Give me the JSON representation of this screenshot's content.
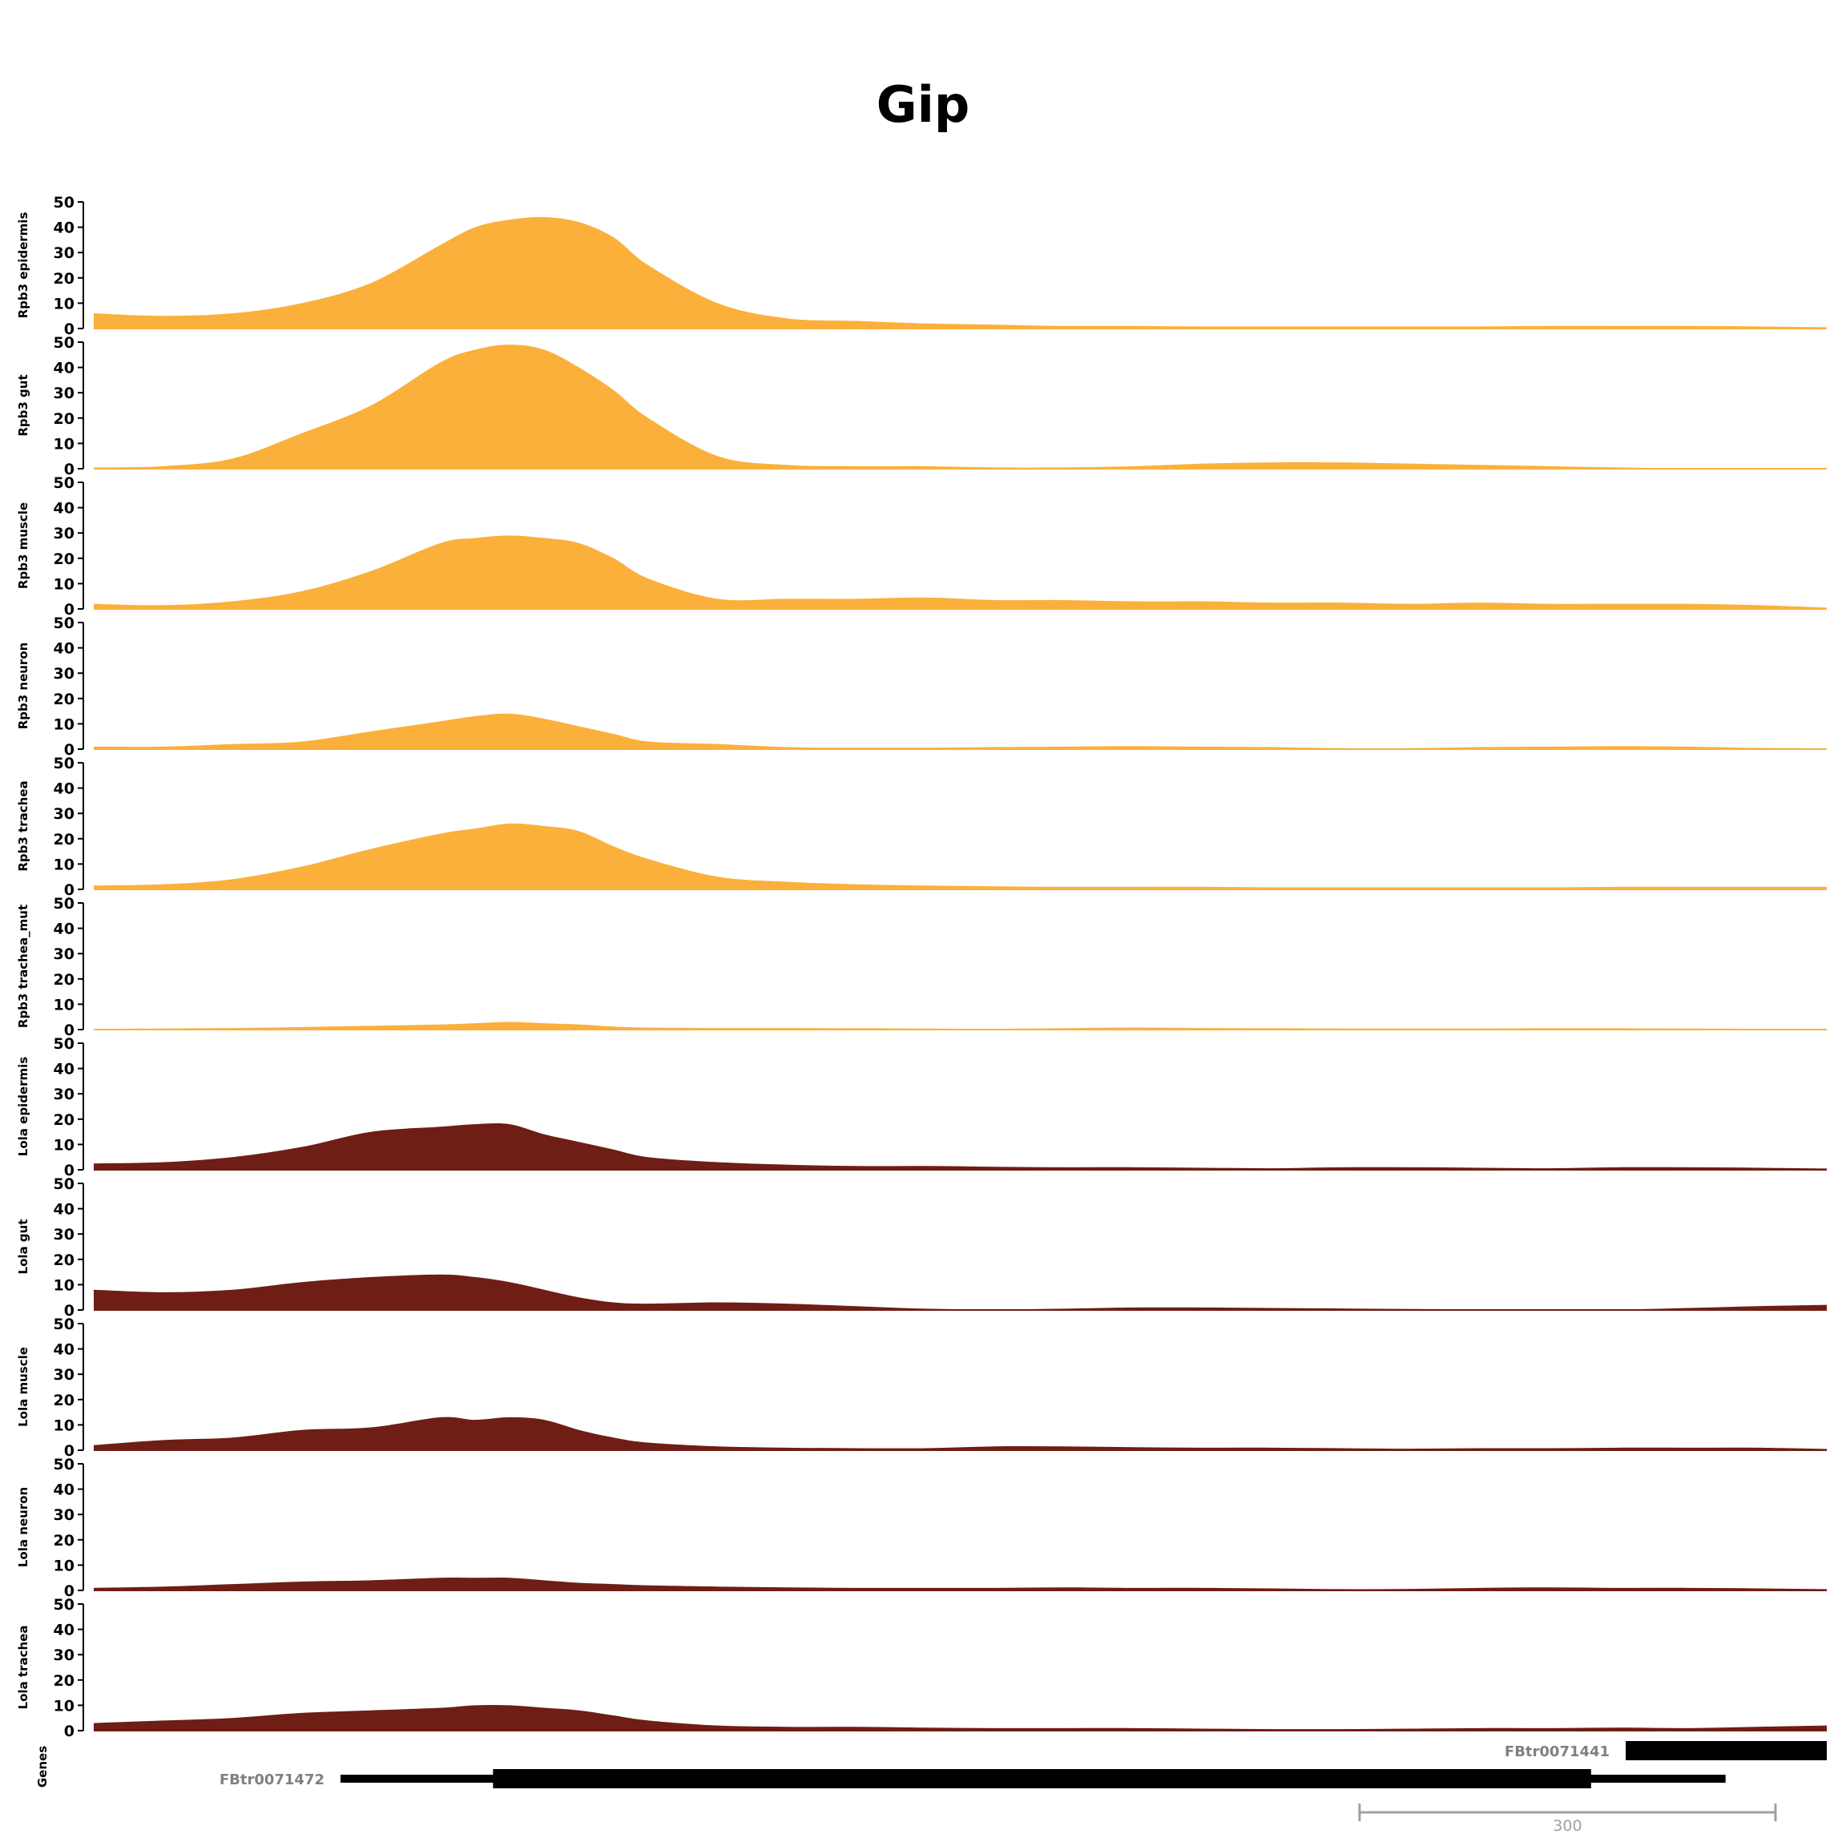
{
  "title": "Gip",
  "colors": {
    "rpb3": "#FBB03B",
    "lola": "#6E1E14",
    "gene": "#000000",
    "gene_label": "#808080",
    "scale": "#A0A0A0",
    "axis": "#000000"
  },
  "chart_data": {
    "type": "area",
    "title": "Gip",
    "ylim": [
      0,
      50
    ],
    "yticks": [
      0,
      10,
      20,
      30,
      40,
      50
    ],
    "x_range": [
      0,
      1250
    ],
    "grid": false,
    "legend": "none",
    "x": [
      0,
      50,
      100,
      150,
      200,
      250,
      275,
      300,
      325,
      350,
      375,
      400,
      450,
      500,
      550,
      600,
      650,
      700,
      750,
      800,
      850,
      900,
      950,
      1000,
      1050,
      1100,
      1150,
      1200,
      1250
    ],
    "series": [
      {
        "name": "Rpb3 epidermis",
        "color_key": "rpb3",
        "values": [
          6,
          5,
          6,
          10,
          18,
          33,
          40,
          43,
          44,
          42,
          36,
          25,
          10,
          4,
          3,
          2,
          1.5,
          1,
          1,
          0.8,
          0.8,
          0.8,
          0.8,
          0.8,
          1,
          1,
          1,
          0.8,
          0.5
        ]
      },
      {
        "name": "Rpb3 gut",
        "color_key": "rpb3",
        "values": [
          0.5,
          1,
          4,
          14,
          25,
          42,
          47,
          49,
          47,
          40,
          31,
          20,
          5,
          1.5,
          1,
          1,
          0.5,
          0.5,
          1,
          2,
          2.5,
          2.5,
          2,
          1.5,
          1,
          0.5,
          0.2,
          0.2,
          0.2
        ]
      },
      {
        "name": "Rpb3 muscle",
        "color_key": "rpb3",
        "values": [
          2,
          1.5,
          3,
          7,
          15,
          26,
          28,
          29,
          28,
          26,
          20,
          12,
          4,
          4,
          4,
          4.5,
          3.5,
          3.5,
          3,
          3,
          2.5,
          2.5,
          2,
          2.5,
          2,
          2,
          2,
          1.5,
          0.5
        ]
      },
      {
        "name": "Rpb3 neuron",
        "color_key": "rpb3",
        "values": [
          1,
          1,
          2,
          3,
          7,
          11,
          13,
          14,
          12,
          9,
          6,
          3,
          2,
          0.8,
          0.6,
          0.6,
          0.8,
          1,
          1.2,
          1,
          0.8,
          0.4,
          0.4,
          0.8,
          1,
          1.2,
          1,
          0.5,
          0.3
        ]
      },
      {
        "name": "Rpb3 trachea",
        "color_key": "rpb3",
        "values": [
          1.5,
          2,
          4,
          9,
          16,
          22,
          24,
          26,
          25,
          23,
          17,
          12,
          5,
          3,
          2,
          1.5,
          1.2,
          1,
          1,
          1,
          0.8,
          0.8,
          0.8,
          0.8,
          0.8,
          1,
          1,
          1,
          1
        ]
      },
      {
        "name": "Rpb3 trachea_mut",
        "color_key": "rpb3",
        "values": [
          0.3,
          0.4,
          0.6,
          1,
          1.5,
          2,
          2.5,
          3,
          2.5,
          2,
          1.2,
          0.8,
          0.6,
          0.6,
          0.5,
          0.4,
          0.3,
          0.5,
          0.8,
          0.6,
          0.5,
          0.4,
          0.4,
          0.4,
          0.5,
          0.5,
          0.4,
          0.3,
          0.2
        ]
      },
      {
        "name": "Lola epidermis",
        "color_key": "lola",
        "values": [
          2.5,
          3,
          5,
          9,
          15,
          17,
          18,
          18,
          14,
          11,
          8,
          5,
          3,
          2,
          1.5,
          1.5,
          1.2,
          1,
          1,
          0.8,
          0.6,
          1,
          1,
          0.8,
          0.6,
          1,
          1,
          0.8,
          0.5
        ]
      },
      {
        "name": "Lola gut",
        "color_key": "lola",
        "values": [
          8,
          7,
          8,
          11,
          13,
          14,
          13,
          11,
          8,
          5,
          3,
          2.5,
          3,
          2.5,
          1.5,
          0.5,
          0.2,
          0.5,
          1,
          1,
          0.8,
          0.6,
          0.4,
          0.3,
          0.2,
          0.2,
          0.8,
          1.5,
          2
        ]
      },
      {
        "name": "Lola muscle",
        "color_key": "lola",
        "values": [
          2,
          4,
          5,
          8,
          9,
          13,
          12,
          13,
          12,
          8,
          5,
          3,
          1.5,
          1,
          0.8,
          0.8,
          1.5,
          1.5,
          1.2,
          1,
          1,
          0.8,
          0.6,
          0.8,
          0.8,
          1,
          1,
          1,
          0.5
        ]
      },
      {
        "name": "Lola neuron",
        "color_key": "lola",
        "values": [
          1,
          1.5,
          2.5,
          3.5,
          4,
          5,
          5,
          5,
          4,
          3,
          2.5,
          2,
          1.5,
          1.2,
          1,
          1,
          1,
          1.2,
          1,
          1,
          0.8,
          0.5,
          0.6,
          1,
          1.2,
          1,
          1,
          0.8,
          0.5
        ]
      },
      {
        "name": "Lola trachea",
        "color_key": "lola",
        "values": [
          3,
          4,
          5,
          7,
          8,
          9,
          10,
          10,
          9,
          8,
          6,
          4,
          2,
          1.5,
          1.5,
          1.2,
          1,
          1,
          1,
          0.8,
          0.6,
          0.6,
          0.8,
          1,
          1,
          1.2,
          1,
          1.5,
          2
        ]
      }
    ]
  },
  "genes_track": {
    "label": "Genes",
    "genes": [
      {
        "name": "FBtr0071441",
        "start": 1105,
        "end": 1250,
        "thick_start": 1105,
        "thick_end": 1250,
        "row": 0
      },
      {
        "name": "FBtr0071472",
        "start": 178,
        "end": 1177,
        "thick_start": 288,
        "thick_end": 1080,
        "row": 1
      }
    ]
  },
  "scale_bar": {
    "start": 913,
    "end": 1213,
    "label": "300"
  }
}
